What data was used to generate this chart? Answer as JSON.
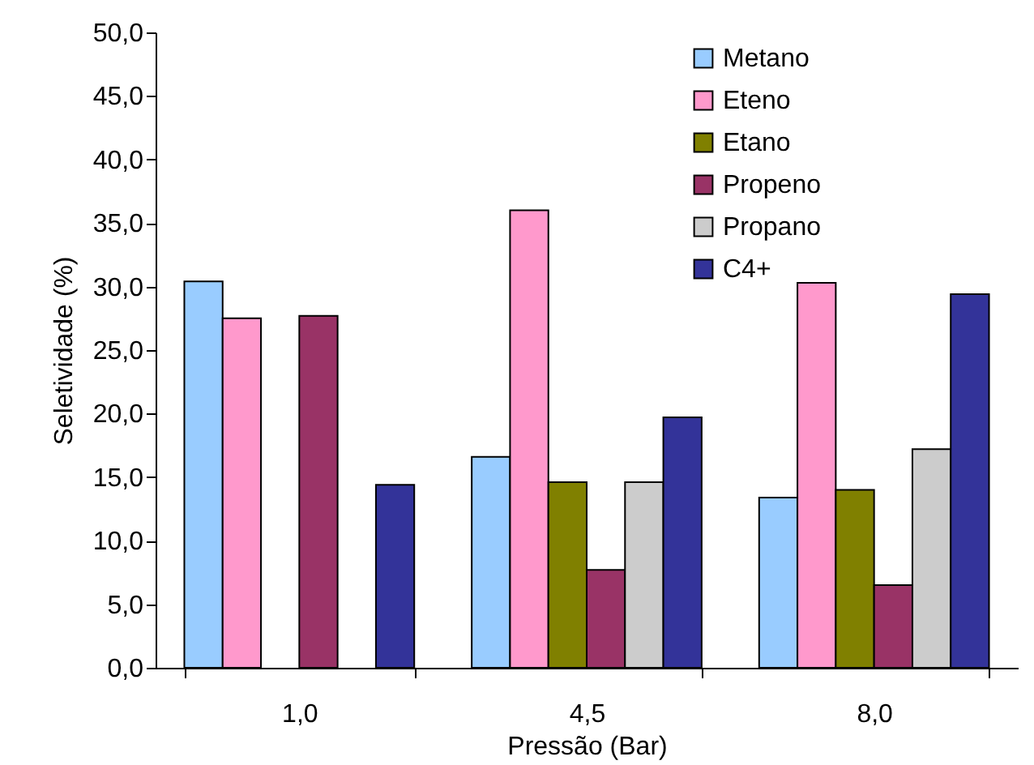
{
  "chart_data": {
    "type": "bar",
    "xlabel": "Pressão (Bar)",
    "ylabel": "Seletividade (%)",
    "categories": [
      "1,0",
      "4,5",
      "8,0"
    ],
    "series": [
      {
        "name": "Metano",
        "color": "#99ccff",
        "values": [
          30.4,
          16.6,
          13.4
        ]
      },
      {
        "name": "Eteno",
        "color": "#ff99cc",
        "values": [
          27.5,
          36.0,
          30.3
        ]
      },
      {
        "name": "Etano",
        "color": "#808000",
        "values": [
          null,
          14.6,
          14.0
        ]
      },
      {
        "name": "Propeno",
        "color": "#993366",
        "values": [
          27.7,
          7.7,
          6.5
        ]
      },
      {
        "name": "Propano",
        "color": "#cccccc",
        "values": [
          null,
          14.6,
          17.2
        ]
      },
      {
        "name": "C4+",
        "color": "#333399",
        "values": [
          14.4,
          19.7,
          29.4
        ]
      }
    ],
    "ylim": [
      0,
      50
    ],
    "yticks": [
      {
        "value": 0,
        "label": "0,0"
      },
      {
        "value": 5,
        "label": "5,0"
      },
      {
        "value": 10,
        "label": "10,0"
      },
      {
        "value": 15,
        "label": "15,0"
      },
      {
        "value": 20,
        "label": "20,0"
      },
      {
        "value": 25,
        "label": "25,0"
      },
      {
        "value": 30,
        "label": "30,0"
      },
      {
        "value": 35,
        "label": "35,0"
      },
      {
        "value": 40,
        "label": "40,0"
      },
      {
        "value": 45,
        "label": "45,0"
      },
      {
        "value": 50,
        "label": "50,0"
      }
    ],
    "grid": false,
    "legend": "top right"
  }
}
